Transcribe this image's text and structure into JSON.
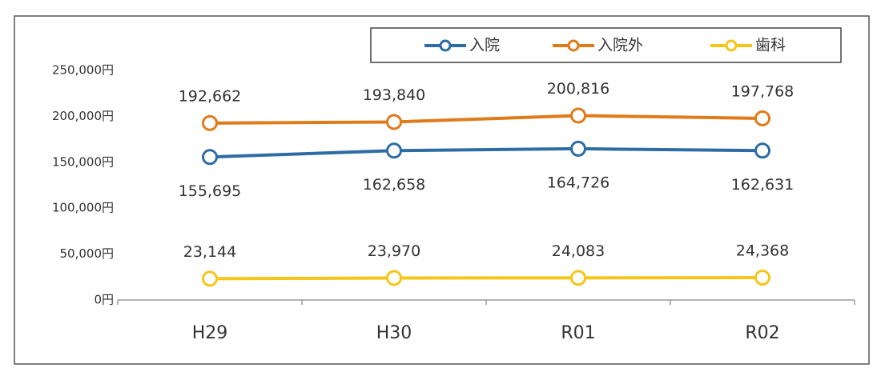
{
  "chart_data": {
    "type": "line",
    "categories": [
      "H29",
      "H30",
      "R01",
      "R02"
    ],
    "series": [
      {
        "name": "入院",
        "color": "#2e6ca4",
        "values": [
          155695,
          162658,
          164726,
          162631
        ],
        "value_labels": [
          "155,695",
          "162,658",
          "164,726",
          "162,631"
        ]
      },
      {
        "name": "入院外",
        "color": "#e07b1a",
        "values": [
          192662,
          193840,
          200816,
          197768
        ],
        "value_labels": [
          "192,662",
          "193,840",
          "200,816",
          "197,768"
        ]
      },
      {
        "name": "歯科",
        "color": "#f5c518",
        "values": [
          23144,
          23970,
          24083,
          24368
        ],
        "value_labels": [
          "23,144",
          "23,970",
          "24,083",
          "24,368"
        ]
      }
    ],
    "ylim": [
      0,
      250000
    ],
    "yticks": [
      {
        "value": 0,
        "label": "0円"
      },
      {
        "value": 50000,
        "label": "50,000円"
      },
      {
        "value": 100000,
        "label": "100,000円"
      },
      {
        "value": 150000,
        "label": "150,000円"
      },
      {
        "value": 200000,
        "label": "200,000円"
      },
      {
        "value": 250000,
        "label": "250,000円"
      }
    ],
    "grid": false,
    "legend": "top-right"
  }
}
